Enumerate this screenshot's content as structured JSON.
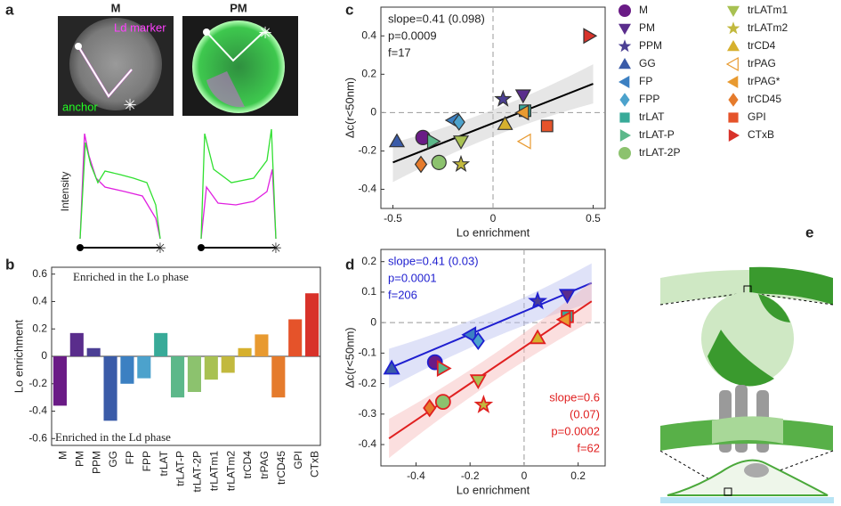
{
  "panel_labels": [
    "a",
    "b",
    "c",
    "d",
    "e"
  ],
  "panel_a": {
    "titles": [
      "M",
      "PM"
    ],
    "ld_label": "Ld marker",
    "anchor_label": "anchor",
    "ylabel": "Intensity"
  },
  "chart_data": [
    {
      "type": "bar",
      "ylabel": "Lo enrichment",
      "annotations": [
        "Enriched in the Lo phase",
        "Enriched in the Ld phase"
      ],
      "categories": [
        "M",
        "PM",
        "PPM",
        "GG",
        "FP",
        "FPP",
        "trLAT",
        "trLAT-P",
        "trLAT-2P",
        "trLATm1",
        "trLATm2",
        "trCD4",
        "trPAG",
        "trCD45",
        "GPI",
        "CTxB"
      ],
      "values": [
        -0.36,
        0.17,
        0.06,
        -0.47,
        -0.2,
        -0.16,
        0.17,
        -0.3,
        -0.26,
        -0.17,
        -0.12,
        0.06,
        0.16,
        -0.3,
        0.27,
        0.46
      ],
      "colors": [
        "#6a1b86",
        "#5a2d8c",
        "#4b3f94",
        "#3a5ba8",
        "#3c80c2",
        "#4ca2cc",
        "#38aa98",
        "#5cb88a",
        "#8cc26e",
        "#a8c152",
        "#c2b93e",
        "#d6b02e",
        "#e89a30",
        "#e57b2c",
        "#e5532a",
        "#d8322a"
      ],
      "ylim": [
        -0.65,
        0.65
      ],
      "yticks": [
        -0.6,
        -0.4,
        -0.2,
        0,
        0.2,
        0.4,
        0.6
      ]
    },
    {
      "type": "scatter",
      "xlabel": "Lo enrichment",
      "ylabel": "Δc(r<50nm)",
      "annotations": [
        "slope=0.41 (0.098)",
        "p=0.0009",
        "f=17"
      ],
      "xlim": [
        -0.56,
        0.56
      ],
      "ylim": [
        -0.5,
        0.55
      ],
      "xticks": [
        -0.5,
        0,
        0.5
      ],
      "yticks": [
        -0.4,
        -0.2,
        0,
        0.2,
        0.4
      ],
      "fit": {
        "x": [
          -0.5,
          0.5
        ],
        "y": [
          -0.26,
          0.15
        ]
      },
      "series": [
        {
          "name": "M",
          "color": "#6a1b86",
          "marker": "circle",
          "x": [
            -0.35
          ],
          "y": [
            -0.13
          ]
        },
        {
          "name": "PM",
          "color": "#5a2d8c",
          "marker": "tri-down",
          "x": [
            0.15
          ],
          "y": [
            0.09
          ]
        },
        {
          "name": "PPM",
          "color": "#4b3f94",
          "marker": "star",
          "x": [
            0.05
          ],
          "y": [
            0.07
          ]
        },
        {
          "name": "GG",
          "color": "#3a5ba8",
          "marker": "tri-up",
          "x": [
            -0.48
          ],
          "y": [
            -0.15
          ]
        },
        {
          "name": "FP",
          "color": "#3c80c2",
          "marker": "tri-left",
          "x": [
            -0.2
          ],
          "y": [
            -0.04
          ]
        },
        {
          "name": "FPP",
          "color": "#4ca2cc",
          "marker": "diamond",
          "x": [
            -0.17
          ],
          "y": [
            -0.05
          ]
        },
        {
          "name": "trLAT",
          "color": "#38aa98",
          "marker": "square",
          "x": [
            0.16
          ],
          "y": [
            0.01
          ]
        },
        {
          "name": "trLAT-P",
          "color": "#5cb88a",
          "marker": "tri-right",
          "x": [
            -0.3
          ],
          "y": [
            -0.15
          ]
        },
        {
          "name": "trLAT-2P",
          "color": "#8cc26e",
          "marker": "circle",
          "x": [
            -0.27
          ],
          "y": [
            -0.26
          ]
        },
        {
          "name": "trLATm1",
          "color": "#a8c152",
          "marker": "tri-down",
          "x": [
            -0.16
          ],
          "y": [
            -0.15
          ]
        },
        {
          "name": "trLATm2",
          "color": "#c2b93e",
          "marker": "star",
          "x": [
            -0.16
          ],
          "y": [
            -0.27
          ]
        },
        {
          "name": "trCD4",
          "color": "#d6b02e",
          "marker": "tri-up",
          "x": [
            0.06
          ],
          "y": [
            -0.06
          ]
        },
        {
          "name": "trPAG",
          "color": "#e89a30",
          "marker": "tri-left",
          "open": true,
          "x": [
            0.16
          ],
          "y": [
            -0.15
          ]
        },
        {
          "name": "trPAG*",
          "color": "#e89a30",
          "marker": "tri-left",
          "x": [
            0.15
          ],
          "y": [
            0.0
          ]
        },
        {
          "name": "trCD45",
          "color": "#e57b2c",
          "marker": "diamond",
          "x": [
            -0.36
          ],
          "y": [
            -0.27
          ]
        },
        {
          "name": "GPI",
          "color": "#e5532a",
          "marker": "square",
          "x": [
            0.27
          ],
          "y": [
            -0.07
          ]
        },
        {
          "name": "CTxB",
          "color": "#d8322a",
          "marker": "tri-right",
          "x": [
            0.48
          ],
          "y": [
            0.4
          ]
        }
      ]
    },
    {
      "type": "scatter-groups",
      "xlabel": "Lo enrichment",
      "ylabel": "Δc(r<50nm)",
      "xlim": [
        -0.53,
        0.3
      ],
      "ylim": [
        -0.47,
        0.24
      ],
      "xticks": [
        -0.4,
        -0.2,
        0,
        0.2
      ],
      "yticks": [
        -0.4,
        -0.3,
        -0.2,
        -0.1,
        0,
        0.1,
        0.2
      ],
      "groups": [
        {
          "color": "#1f1fd0",
          "annotations": [
            "slope=0.41 (0.03)",
            "p=0.0001",
            "f=206"
          ],
          "fit": {
            "x": [
              -0.5,
              0.25
            ],
            "y": [
              -0.15,
              0.13
            ]
          },
          "points": [
            {
              "x": -0.49,
              "y": -0.15,
              "marker": "tri-up",
              "fill": "#3a5ba8"
            },
            {
              "x": -0.33,
              "y": -0.13,
              "marker": "circle",
              "fill": "#6a1b86"
            },
            {
              "x": -0.2,
              "y": -0.04,
              "marker": "tri-left",
              "fill": "#3c80c2"
            },
            {
              "x": -0.17,
              "y": -0.06,
              "marker": "diamond",
              "fill": "#4ca2cc"
            },
            {
              "x": 0.05,
              "y": 0.07,
              "marker": "star",
              "fill": "#4b3f94"
            },
            {
              "x": 0.16,
              "y": 0.09,
              "marker": "tri-down",
              "fill": "#5a2d8c"
            }
          ]
        },
        {
          "color": "#e02020",
          "annotations": [
            "slope=0.6",
            "(0.07)",
            "p=0.0002",
            "f=62"
          ],
          "fit": {
            "x": [
              -0.5,
              0.25
            ],
            "y": [
              -0.38,
              0.07
            ]
          },
          "points": [
            {
              "x": -0.3,
              "y": -0.15,
              "marker": "tri-right",
              "fill": "#5cb88a"
            },
            {
              "x": -0.3,
              "y": -0.26,
              "marker": "circle",
              "fill": "#8cc26e"
            },
            {
              "x": -0.35,
              "y": -0.28,
              "marker": "diamond",
              "fill": "#e57b2c"
            },
            {
              "x": -0.17,
              "y": -0.19,
              "marker": "tri-down",
              "fill": "#a8c152"
            },
            {
              "x": -0.15,
              "y": -0.27,
              "marker": "star",
              "fill": "#c2b93e"
            },
            {
              "x": 0.05,
              "y": -0.05,
              "marker": "tri-up",
              "fill": "#d6b02e"
            },
            {
              "x": 0.16,
              "y": 0.02,
              "marker": "square",
              "fill": "#38aa98"
            },
            {
              "x": 0.15,
              "y": 0.01,
              "marker": "tri-left",
              "fill": "#e89a30"
            }
          ]
        }
      ]
    }
  ]
}
